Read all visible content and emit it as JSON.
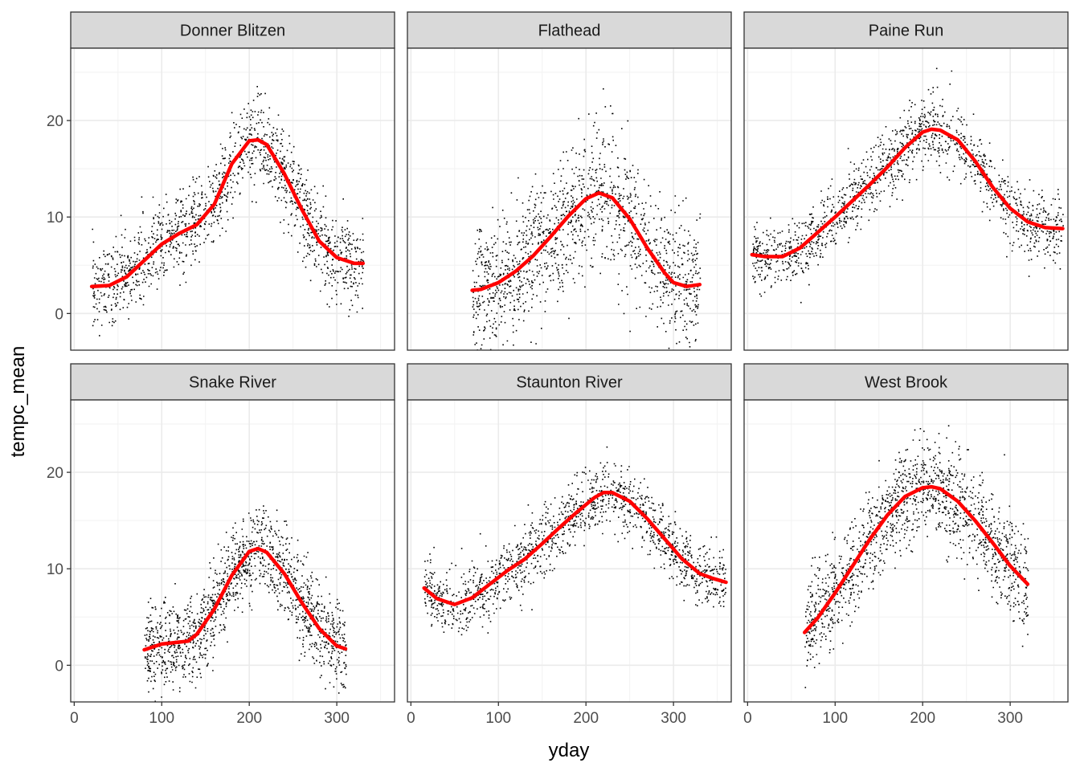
{
  "chart_data": {
    "type": "scatter",
    "xlabel": "yday",
    "ylabel": "tempc_mean",
    "xlim": [
      -4,
      366
    ],
    "ylim": [
      -3.8,
      27.5
    ],
    "x_ticks": [
      0,
      100,
      200,
      300
    ],
    "y_ticks": [
      0,
      10,
      20
    ],
    "grid": true,
    "point_color": "#000000",
    "fit_color": "#ff0000",
    "panels": [
      {
        "name": "Donner Blitzen",
        "points_x_range": [
          20,
          330
        ],
        "points_spread": 2.2,
        "fit": {
          "x": [
            20,
            40,
            60,
            80,
            100,
            120,
            140,
            160,
            180,
            200,
            210,
            220,
            240,
            260,
            280,
            300,
            320,
            330
          ],
          "y": [
            2.8,
            2.9,
            3.8,
            5.5,
            7.2,
            8.3,
            9.2,
            11.3,
            15.5,
            17.9,
            18.0,
            17.5,
            14.5,
            10.8,
            7.5,
            5.8,
            5.2,
            5.2
          ]
        }
      },
      {
        "name": "Flathead",
        "points_x_range": [
          70,
          330
        ],
        "points_spread": 3.5,
        "fit": {
          "x": [
            70,
            80,
            100,
            120,
            140,
            160,
            180,
            200,
            215,
            230,
            250,
            270,
            290,
            300,
            315,
            330
          ],
          "y": [
            2.4,
            2.5,
            3.2,
            4.4,
            6.0,
            8.0,
            10.1,
            11.9,
            12.5,
            12.0,
            9.8,
            6.8,
            4.2,
            3.2,
            2.8,
            3.0
          ]
        }
      },
      {
        "name": "Paine Run",
        "points_x_range": [
          5,
          360
        ],
        "points_spread": 1.8,
        "fit": {
          "x": [
            5,
            20,
            40,
            60,
            80,
            100,
            120,
            140,
            160,
            180,
            200,
            210,
            220,
            240,
            260,
            280,
            300,
            320,
            340,
            360
          ],
          "y": [
            6.1,
            5.9,
            5.9,
            6.8,
            8.4,
            10.0,
            11.7,
            13.4,
            15.2,
            17.2,
            18.8,
            19.1,
            19.0,
            18.0,
            15.8,
            13.1,
            10.9,
            9.5,
            8.9,
            8.8
          ]
        }
      },
      {
        "name": "Snake River",
        "points_x_range": [
          80,
          310
        ],
        "points_spread": 2.2,
        "fit": {
          "x": [
            80,
            100,
            120,
            130,
            140,
            160,
            180,
            200,
            210,
            220,
            240,
            260,
            280,
            300,
            310
          ],
          "y": [
            1.6,
            2.2,
            2.4,
            2.5,
            3.2,
            5.8,
            9.3,
            11.8,
            12.1,
            11.7,
            9.5,
            6.5,
            3.8,
            2.0,
            1.7
          ]
        }
      },
      {
        "name": "Staunton River",
        "points_x_range": [
          15,
          360
        ],
        "points_spread": 1.7,
        "fit": {
          "x": [
            15,
            30,
            50,
            70,
            90,
            110,
            130,
            150,
            170,
            190,
            210,
            220,
            230,
            250,
            270,
            290,
            310,
            330,
            345,
            360
          ],
          "y": [
            8.0,
            6.9,
            6.3,
            7.0,
            8.4,
            9.8,
            11.0,
            12.6,
            14.3,
            15.9,
            17.4,
            17.9,
            17.9,
            17.0,
            15.2,
            13.1,
            11.0,
            9.5,
            9.0,
            8.6
          ]
        }
      },
      {
        "name": "West Brook",
        "points_x_range": [
          65,
          320
        ],
        "points_spread": 2.5,
        "fit": {
          "x": [
            65,
            80,
            100,
            120,
            140,
            160,
            180,
            200,
            210,
            220,
            240,
            260,
            280,
            300,
            320
          ],
          "y": [
            3.4,
            4.9,
            7.5,
            10.3,
            13.1,
            15.6,
            17.5,
            18.4,
            18.5,
            18.3,
            17.0,
            15.0,
            12.7,
            10.3,
            8.4
          ]
        }
      }
    ]
  }
}
